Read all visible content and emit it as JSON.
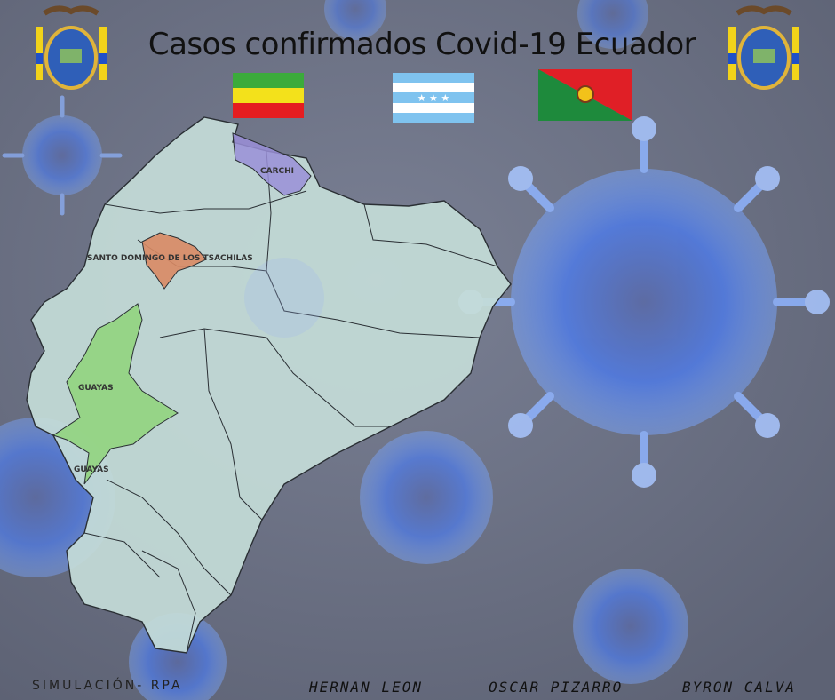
{
  "title": "Casos confirmados Covid-19 Ecuador",
  "provinces": {
    "carchi": "CARCHI",
    "santo_domingo": "SANTO DOMINGO DE LOS TSACHILAS",
    "guayas_north": "GUAYAS",
    "guayas_south": "GUAYAS"
  },
  "flags": {
    "flag_1": "santo-domingo-flag",
    "flag_2": "guayas-flag",
    "flag_3": "carchi-flag"
  },
  "colors": {
    "carchi": "#9a8fd8",
    "santo_domingo": "#d98a64",
    "guayas": "#8fd47a",
    "country": "#c4dcd8"
  },
  "footer": {
    "simulation": "SIMULACIÓN- RPA",
    "author_1": "HERNAN LEON",
    "author_2": "OSCAR PIZARRO",
    "author_3": "BYRON CALVA"
  }
}
